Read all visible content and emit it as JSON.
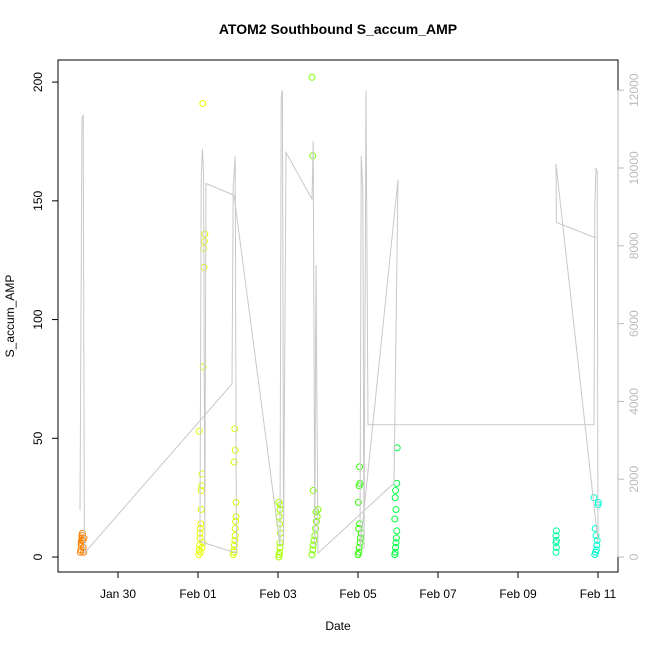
{
  "chart_data": {
    "type": "scatter",
    "title": "ATOM2 Southbound S_accum_AMP",
    "x_label": "Date",
    "y_label": "S_accum_AMP",
    "xlim": [
      27.5,
      41.5
    ],
    "xticks": [
      {
        "value": 29,
        "label": "Jan 30"
      },
      {
        "value": 31,
        "label": "Feb 01"
      },
      {
        "value": 33,
        "label": "Feb 03"
      },
      {
        "value": 35,
        "label": "Feb 05"
      },
      {
        "value": 37,
        "label": "Feb 07"
      },
      {
        "value": 39,
        "label": "Feb 09"
      },
      {
        "value": 41,
        "label": "Feb 11"
      }
    ],
    "ylim": [
      -6.3,
      209.3
    ],
    "yticks": [
      0,
      50,
      100,
      150,
      200
    ],
    "y2lim": [
      -385,
      12776
    ],
    "y2ticks": [
      0,
      2000,
      4000,
      6000,
      8000,
      10000,
      12000
    ],
    "series": [
      {
        "color": "#ff8000",
        "x": [
          28.06,
          28.07,
          28.08,
          28.08,
          28.09,
          28.1,
          28.1,
          28.11,
          28.12,
          28.13,
          28.14,
          28.15
        ],
        "values": [
          2,
          3,
          5,
          6,
          7,
          8,
          9,
          10,
          7,
          4,
          2,
          8
        ]
      },
      {
        "color": "#e6ff00",
        "x": [
          31.02,
          31.03,
          31.04,
          31.05,
          31.05,
          31.06,
          31.07,
          31.08,
          31.08,
          31.09,
          31.1,
          31.03,
          31.13,
          31.15,
          31.14,
          31.16,
          31.17,
          31.12,
          31.06,
          31.1,
          31.12
        ],
        "values": [
          1,
          3,
          5,
          8,
          10,
          12,
          14,
          20,
          28,
          30,
          35,
          53,
          80,
          122,
          130,
          133,
          136,
          191,
          2,
          4,
          6
        ]
      },
      {
        "color": "#d4ff00",
        "x": [
          31.88,
          31.9,
          31.9,
          31.91,
          31.92,
          31.93,
          31.93,
          31.94,
          31.95,
          31.95,
          31.9,
          31.93,
          31.92
        ],
        "values": [
          1,
          2,
          3,
          5,
          7,
          9,
          12,
          15,
          17,
          23,
          40,
          45,
          54
        ]
      },
      {
        "color": "#a8ff00",
        "x": [
          33.02,
          33.03,
          33.04,
          33.05,
          33.05,
          33.06,
          33.04,
          33.03,
          33.05,
          33.06,
          33.02
        ],
        "values": [
          0,
          1,
          2,
          4,
          6,
          10,
          14,
          17,
          20,
          22,
          23
        ]
      },
      {
        "color": "#7dff00",
        "x": [
          33.85,
          33.87,
          33.88,
          33.9,
          33.92,
          33.94,
          33.96,
          33.98,
          34.0,
          33.88,
          33.87,
          33.85,
          33.95
        ],
        "values": [
          1,
          3,
          5,
          7,
          9,
          12,
          15,
          17,
          20,
          28,
          169,
          202,
          19
        ]
      },
      {
        "color": "#2bff00",
        "x": [
          35.0,
          35.02,
          35.03,
          35.05,
          35.06,
          35.08,
          35.02,
          35.04,
          35.01,
          35.03,
          35.05,
          35.04
        ],
        "values": [
          1,
          2,
          4,
          6,
          8,
          10,
          12,
          14,
          23,
          30,
          31,
          38
        ]
      },
      {
        "color": "#00ff40",
        "x": [
          35.92,
          35.93,
          35.94,
          35.95,
          35.96,
          35.97,
          35.92,
          35.95,
          35.93,
          35.94,
          35.97,
          35.98
        ],
        "values": [
          1,
          2,
          4,
          6,
          8,
          11,
          16,
          20,
          25,
          28,
          31,
          46
        ]
      },
      {
        "color": "#00ffa0",
        "x": [
          39.95,
          39.96,
          39.95,
          39.96,
          39.95,
          39.96
        ],
        "values": [
          2,
          4,
          6,
          7,
          9,
          11
        ]
      },
      {
        "color": "#00ffd0",
        "x": [
          40.92,
          40.94,
          40.96,
          40.97,
          40.98,
          40.95,
          40.93,
          41.0,
          41.01,
          40.9
        ],
        "values": [
          1,
          2,
          3,
          5,
          7,
          9,
          12,
          22,
          23,
          25
        ]
      },
      {
        "type": "line",
        "axis": "y2",
        "color": "#c8c8c8",
        "x": [
          28.05,
          28.1,
          28.13,
          28.16,
          31.85,
          31.88,
          31.93,
          31.96,
          31.05,
          31.08,
          31.11,
          31.14,
          31.17,
          31.2,
          31.9,
          33.05,
          33.08,
          33.11,
          33.14,
          33.2,
          33.85,
          33.88,
          33.92,
          33.95,
          34.0,
          35.9,
          36.0,
          35.05,
          35.08,
          35.12,
          35.15,
          35.2,
          35.25,
          40.9,
          40.92,
          40.95,
          40.98,
          41.0,
          39.95,
          39.96,
          40.95
        ],
        "values": [
          1200,
          11300,
          11350,
          100,
          4450,
          9500,
          10300,
          100,
          400,
          9700,
          10500,
          9800,
          300,
          9600,
          9300,
          300,
          11800,
          12000,
          300,
          10400,
          9200,
          10700,
          300,
          7500,
          100,
          1900,
          9700,
          200,
          10300,
          9500,
          200,
          12000,
          3400,
          3400,
          9000,
          10000,
          9900,
          400,
          10100,
          8600,
          8200
        ]
      }
    ]
  }
}
